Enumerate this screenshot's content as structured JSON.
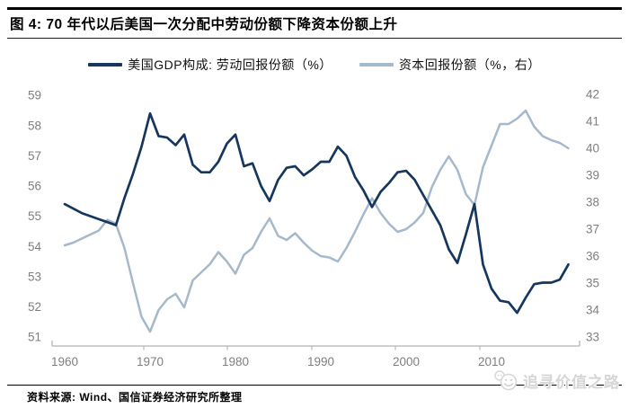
{
  "title": "图 4: 70 年代以后美国一次分配中劳动份额下降资本份额上升",
  "legend": [
    {
      "label": "美国GDP构成: 劳动回报份额（%）",
      "color": "#17365D"
    },
    {
      "label": "资本回报份额（%，右）",
      "color": "#A6B8CB"
    }
  ],
  "source": "资料来源: Wind、国信证券经济研究所整理",
  "watermark": {
    "text": "追寻价值之路",
    "icon": "chat-smiley-icon",
    "color": "#d6d6d6"
  },
  "colors": {
    "labor_line": "#17365D",
    "capital_line": "#A6B8CB",
    "axis": "#BFBFBF",
    "tick_text": "#7f7f7f"
  },
  "chart_data": {
    "type": "line",
    "title": "70 年代以后美国一次分配中劳动份额下降资本份额上升",
    "xlabel": "",
    "ylabel_left": "劳动回报份额（%）",
    "ylabel_right": "资本回报份额（%）",
    "grid": false,
    "legend_position": "top",
    "x_ticks": [
      1960,
      1970,
      1980,
      1990,
      2000,
      2010
    ],
    "left_axis": {
      "range": [
        51,
        59
      ],
      "ticks": [
        51,
        52,
        53,
        54,
        55,
        56,
        57,
        58,
        59
      ]
    },
    "right_axis": {
      "range": [
        33,
        42
      ],
      "ticks": [
        33,
        34,
        35,
        36,
        37,
        38,
        39,
        40,
        41,
        42
      ]
    },
    "x": [
      1960,
      1961,
      1962,
      1963,
      1964,
      1965,
      1966,
      1967,
      1968,
      1969,
      1970,
      1971,
      1972,
      1973,
      1974,
      1975,
      1976,
      1977,
      1978,
      1979,
      1980,
      1981,
      1982,
      1983,
      1984,
      1985,
      1986,
      1987,
      1988,
      1989,
      1990,
      1991,
      1992,
      1993,
      1994,
      1995,
      1996,
      1997,
      1998,
      1999,
      2000,
      2001,
      2002,
      2003,
      2004,
      2005,
      2006,
      2007,
      2008,
      2009,
      2010,
      2011,
      2012,
      2013,
      2014,
      2015,
      2016,
      2017,
      2018,
      2019
    ],
    "series": [
      {
        "id": "labor-share-line",
        "name": "美国GDP构成: 劳动回报份额（%）",
        "axis": "left",
        "color": "#17365D",
        "width": 2.7,
        "values": [
          55.4,
          55.25,
          55.1,
          55.0,
          54.9,
          54.8,
          54.7,
          55.6,
          56.4,
          57.3,
          58.4,
          57.65,
          57.6,
          57.35,
          57.7,
          56.7,
          56.45,
          56.45,
          56.8,
          57.4,
          57.7,
          56.65,
          56.75,
          56.0,
          55.5,
          56.2,
          56.6,
          56.65,
          56.35,
          56.55,
          56.8,
          56.8,
          57.3,
          57.0,
          56.3,
          55.85,
          55.3,
          55.8,
          56.1,
          56.45,
          56.5,
          56.2,
          55.7,
          55.2,
          54.7,
          53.9,
          53.45,
          54.4,
          55.4,
          53.4,
          52.6,
          52.2,
          52.15,
          51.8,
          52.3,
          52.75,
          52.8,
          52.8,
          52.9,
          53.4
        ]
      },
      {
        "id": "capital-share-line",
        "name": "资本回报份额（%，右）",
        "axis": "right",
        "color": "#A6B8CB",
        "width": 2.5,
        "values": [
          36.4,
          36.5,
          36.65,
          36.8,
          36.95,
          37.35,
          37.2,
          36.3,
          35.0,
          33.75,
          33.2,
          34.0,
          34.4,
          34.6,
          34.1,
          35.1,
          35.4,
          35.7,
          36.15,
          35.8,
          35.35,
          36.05,
          36.3,
          36.9,
          37.4,
          36.75,
          36.6,
          36.85,
          36.5,
          36.2,
          36.0,
          35.95,
          35.8,
          36.3,
          36.9,
          37.55,
          38.15,
          37.6,
          37.2,
          36.9,
          37.0,
          37.25,
          37.6,
          38.55,
          39.2,
          39.7,
          39.2,
          38.3,
          37.9,
          39.3,
          40.1,
          40.9,
          40.9,
          41.1,
          41.4,
          40.8,
          40.45,
          40.3,
          40.2,
          40.0
        ]
      }
    ]
  }
}
